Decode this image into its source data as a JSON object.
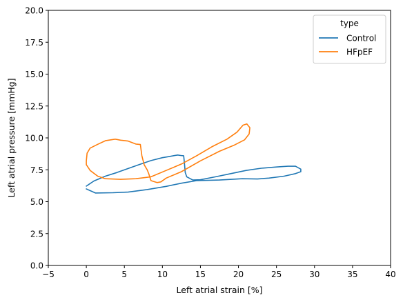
{
  "chart_data": {
    "type": "line",
    "xlabel": "Left atrial strain [%]",
    "ylabel": "Left atrial pressure [mmHg]",
    "xlim": [
      -5,
      40
    ],
    "ylim": [
      0,
      20
    ],
    "xticks": [
      "−5",
      "0",
      "5",
      "10",
      "15",
      "20",
      "25",
      "30",
      "35",
      "40"
    ],
    "xtick_values": [
      -5,
      0,
      5,
      10,
      15,
      20,
      25,
      30,
      35,
      40
    ],
    "yticks": [
      "0.0",
      "2.5",
      "5.0",
      "7.5",
      "10.0",
      "12.5",
      "15.0",
      "17.5",
      "20.0"
    ],
    "ytick_values": [
      0,
      2.5,
      5,
      7.5,
      10,
      12.5,
      15,
      17.5,
      20
    ],
    "grid": false,
    "legend": {
      "title": "type",
      "position": "top-right"
    },
    "series": [
      {
        "name": "Control",
        "color": "#1f77b4",
        "points": [
          [
            0.0,
            6.0
          ],
          [
            1.2,
            5.68
          ],
          [
            3.5,
            5.7
          ],
          [
            5.5,
            5.75
          ],
          [
            8.0,
            5.95
          ],
          [
            10.5,
            6.2
          ],
          [
            12.5,
            6.45
          ],
          [
            14.5,
            6.65
          ],
          [
            17.5,
            6.7
          ],
          [
            20.5,
            6.8
          ],
          [
            22.5,
            6.78
          ],
          [
            24.0,
            6.85
          ],
          [
            26.0,
            7.0
          ],
          [
            27.5,
            7.2
          ],
          [
            28.2,
            7.35
          ],
          [
            28.2,
            7.55
          ],
          [
            27.5,
            7.78
          ],
          [
            26.5,
            7.78
          ],
          [
            25.0,
            7.72
          ],
          [
            23.0,
            7.62
          ],
          [
            21.0,
            7.45
          ],
          [
            19.0,
            7.2
          ],
          [
            17.0,
            6.95
          ],
          [
            15.0,
            6.72
          ],
          [
            14.0,
            6.7
          ],
          [
            13.2,
            6.95
          ],
          [
            13.0,
            7.3
          ],
          [
            12.9,
            8.0
          ],
          [
            12.8,
            8.6
          ],
          [
            12.4,
            8.62
          ],
          [
            12.0,
            8.66
          ],
          [
            11.0,
            8.55
          ],
          [
            10.0,
            8.45
          ],
          [
            8.5,
            8.22
          ],
          [
            7.0,
            7.92
          ],
          [
            5.5,
            7.6
          ],
          [
            4.0,
            7.28
          ],
          [
            2.5,
            7.0
          ],
          [
            1.0,
            6.62
          ],
          [
            0.0,
            6.22
          ]
        ]
      },
      {
        "name": "HFpEF",
        "color": "#ff7f0e",
        "points": [
          [
            0.0,
            8.2
          ],
          [
            0.1,
            8.8
          ],
          [
            0.5,
            9.2
          ],
          [
            1.5,
            9.5
          ],
          [
            2.5,
            9.78
          ],
          [
            3.8,
            9.9
          ],
          [
            4.5,
            9.82
          ],
          [
            5.5,
            9.75
          ],
          [
            6.5,
            9.52
          ],
          [
            7.1,
            9.48
          ],
          [
            7.3,
            8.6
          ],
          [
            7.6,
            7.9
          ],
          [
            8.0,
            7.5
          ],
          [
            8.2,
            7.2
          ],
          [
            8.5,
            6.65
          ],
          [
            9.3,
            6.5
          ],
          [
            9.8,
            6.55
          ],
          [
            10.5,
            6.85
          ],
          [
            12.5,
            7.35
          ],
          [
            15.0,
            8.2
          ],
          [
            17.5,
            8.95
          ],
          [
            19.5,
            9.45
          ],
          [
            20.8,
            9.85
          ],
          [
            21.4,
            10.3
          ],
          [
            21.5,
            10.8
          ],
          [
            21.1,
            11.1
          ],
          [
            20.6,
            11.0
          ],
          [
            19.8,
            10.45
          ],
          [
            18.5,
            9.9
          ],
          [
            16.5,
            9.3
          ],
          [
            14.5,
            8.6
          ],
          [
            12.5,
            7.95
          ],
          [
            10.5,
            7.45
          ],
          [
            8.5,
            6.95
          ],
          [
            6.5,
            6.8
          ],
          [
            4.5,
            6.75
          ],
          [
            2.5,
            6.8
          ],
          [
            1.5,
            7.0
          ],
          [
            0.5,
            7.45
          ],
          [
            0.0,
            7.9
          ],
          [
            0.0,
            8.2
          ]
        ]
      }
    ]
  }
}
